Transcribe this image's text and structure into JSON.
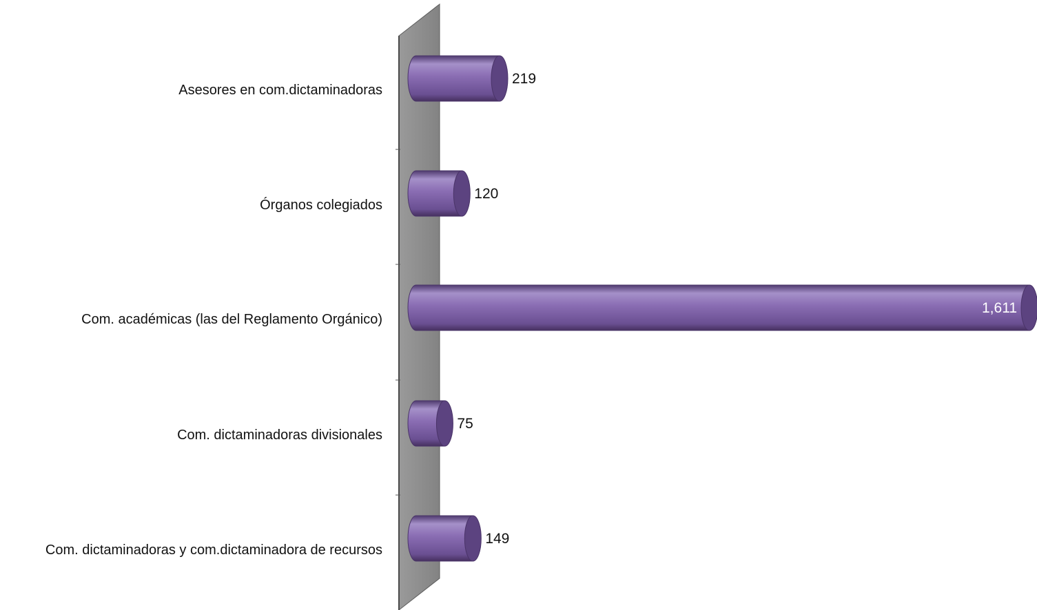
{
  "chart_data": {
    "type": "bar",
    "orientation": "horizontal",
    "style": "3d-cylinder",
    "categories": [
      "Asesores en com.dictaminadoras",
      "Órganos colegiados",
      "Com. académicas (las del Reglamento Orgánico)",
      "Com. dictaminadoras  divisionales",
      "Com. dictaminadoras  y  com.dictaminadora  de recursos"
    ],
    "values": [
      219,
      120,
      1611,
      75,
      149
    ],
    "value_labels": [
      "219",
      "120",
      "1,611",
      "75",
      "149"
    ],
    "title": "",
    "xlabel": "",
    "ylabel": "",
    "xlim": [
      0,
      1611
    ],
    "grid": false,
    "legend": "none",
    "colors": {
      "bar_body": "#8468ad",
      "bar_light": "#a58fcc",
      "bar_dark": "#4a3468",
      "bar_cap": "#5c4380",
      "wall_front": "#8c8c8c",
      "wall_edge": "#5e5e5e",
      "value_text_outside": "#111111",
      "value_text_inside": "#ffffff"
    }
  }
}
